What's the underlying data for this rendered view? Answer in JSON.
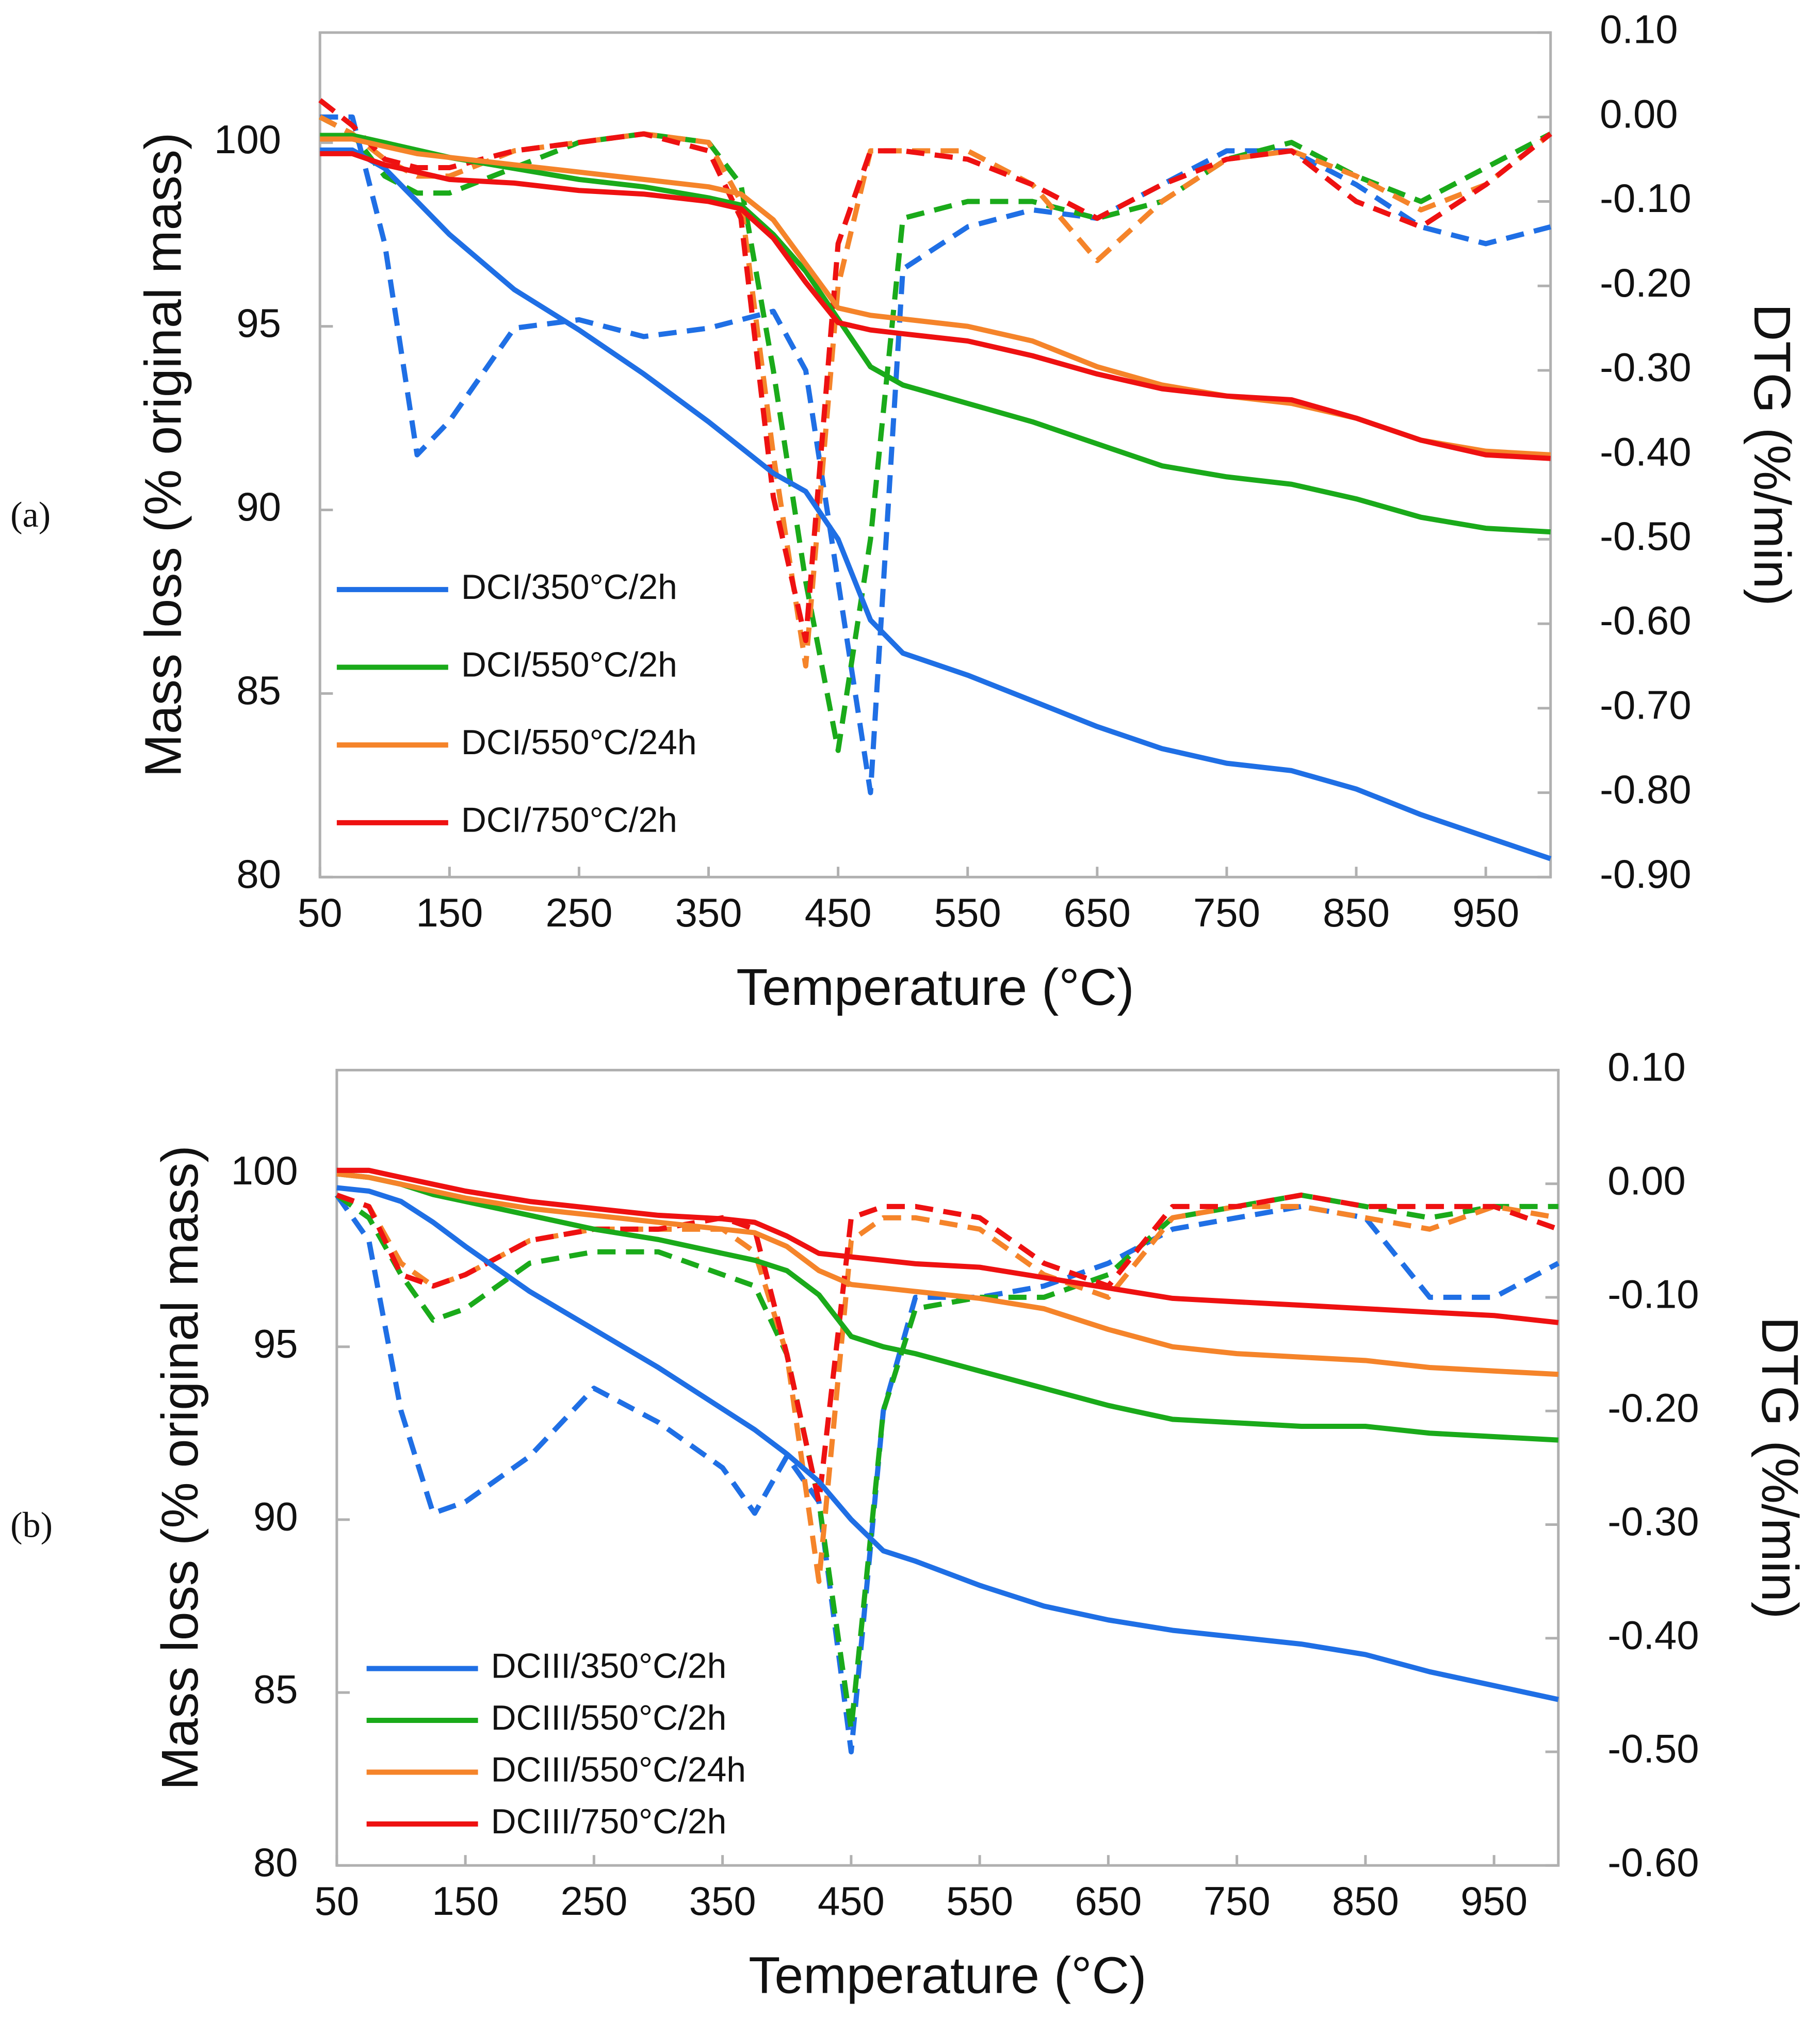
{
  "chart_data": [
    {
      "type": "line",
      "panel_label": "(a)",
      "xlabel": "Temperature (°C)",
      "ylabel": "Mass loss (% original mass)",
      "y2label": "DTG (%/min)",
      "x": [
        50,
        75,
        100,
        125,
        150,
        200,
        250,
        300,
        350,
        375,
        400,
        425,
        450,
        475,
        500,
        550,
        600,
        650,
        700,
        750,
        800,
        850,
        900,
        950,
        1000
      ],
      "xlim": [
        50,
        1000
      ],
      "xticks": [
        50,
        150,
        250,
        350,
        450,
        550,
        650,
        750,
        850,
        950
      ],
      "ylim": [
        80,
        103
      ],
      "yticks": [
        80,
        85,
        90,
        95,
        100
      ],
      "y2lim": [
        -0.9,
        0.1
      ],
      "y2ticks": [
        {
          "value": -0.9,
          "label": "-0.90"
        },
        {
          "value": -0.8,
          "label": "-0.80"
        },
        {
          "value": -0.7,
          "label": "-0.70"
        },
        {
          "value": -0.6,
          "label": "-0.60"
        },
        {
          "value": -0.5,
          "label": "-0.50"
        },
        {
          "value": -0.4,
          "label": "-0.40"
        },
        {
          "value": -0.3,
          "label": "-0.30"
        },
        {
          "value": -0.2,
          "label": "-0.20"
        },
        {
          "value": -0.1,
          "label": "-0.10"
        },
        {
          "value": 0,
          "label": "0.00"
        },
        {
          "value": 0.1,
          "label": "0.10"
        }
      ],
      "series": [
        {
          "name": "DCI/350°C/2h",
          "color": "#1f6fe5",
          "values": [
            99.8,
            99.8,
            99.3,
            98.4,
            97.5,
            96.0,
            94.9,
            93.7,
            92.4,
            91.7,
            91.0,
            90.5,
            89.2,
            87.0,
            86.1,
            85.5,
            84.8,
            84.1,
            83.5,
            83.1,
            82.9,
            82.4,
            81.7,
            81.1,
            80.5
          ]
        },
        {
          "name": "DCI/550°C/2h",
          "color": "#1aaa1a",
          "values": [
            100.2,
            100.2,
            100.0,
            99.8,
            99.6,
            99.3,
            99.0,
            98.8,
            98.5,
            98.3,
            97.5,
            96.5,
            95.2,
            93.9,
            93.4,
            92.9,
            92.4,
            91.8,
            91.2,
            90.9,
            90.7,
            90.3,
            89.8,
            89.5,
            89.4
          ]
        },
        {
          "name": "DCI/550°C/24h",
          "color": "#f5842a",
          "values": [
            100.1,
            100.1,
            99.9,
            99.7,
            99.6,
            99.4,
            99.2,
            99.0,
            98.8,
            98.6,
            97.9,
            96.7,
            95.5,
            95.3,
            95.2,
            95.0,
            94.6,
            93.9,
            93.4,
            93.1,
            92.9,
            92.5,
            91.9,
            91.6,
            91.5
          ]
        },
        {
          "name": "DCI/750°C/2h",
          "color": "#ee1111",
          "values": [
            99.7,
            99.7,
            99.4,
            99.2,
            99.0,
            98.9,
            98.7,
            98.6,
            98.4,
            98.2,
            97.4,
            96.2,
            95.1,
            94.9,
            94.8,
            94.6,
            94.2,
            93.7,
            93.3,
            93.1,
            93.0,
            92.5,
            91.9,
            91.5,
            91.4
          ]
        },
        {
          "color": "#1f6fe5",
          "axis": "y2",
          "line_style": "dashed",
          "values": [
            0.0,
            0.0,
            -0.15,
            -0.4,
            -0.36,
            -0.25,
            -0.24,
            -0.26,
            -0.25,
            -0.24,
            -0.23,
            -0.3,
            -0.55,
            -0.8,
            -0.18,
            -0.13,
            -0.11,
            -0.12,
            -0.08,
            -0.04,
            -0.04,
            -0.08,
            -0.13,
            -0.15,
            -0.13
          ]
        },
        {
          "color": "#1aaa1a",
          "axis": "y2",
          "line_style": "dashed",
          "values": [
            0.0,
            -0.02,
            -0.07,
            -0.09,
            -0.09,
            -0.06,
            -0.03,
            -0.02,
            -0.03,
            -0.08,
            -0.3,
            -0.55,
            -0.75,
            -0.5,
            -0.12,
            -0.1,
            -0.1,
            -0.12,
            -0.1,
            -0.05,
            -0.03,
            -0.07,
            -0.1,
            -0.06,
            -0.02
          ]
        },
        {
          "color": "#f5842a",
          "axis": "y2",
          "line_style": "dashed",
          "values": [
            0.0,
            -0.02,
            -0.05,
            -0.07,
            -0.07,
            -0.04,
            -0.03,
            -0.02,
            -0.03,
            -0.1,
            -0.4,
            -0.65,
            -0.2,
            -0.04,
            -0.04,
            -0.04,
            -0.08,
            -0.17,
            -0.1,
            -0.05,
            -0.04,
            -0.07,
            -0.11,
            -0.08,
            -0.02
          ]
        },
        {
          "color": "#ee1111",
          "axis": "y2",
          "line_style": "dashed",
          "values": [
            0.02,
            -0.01,
            -0.05,
            -0.06,
            -0.06,
            -0.04,
            -0.03,
            -0.02,
            -0.04,
            -0.12,
            -0.45,
            -0.62,
            -0.15,
            -0.04,
            -0.04,
            -0.05,
            -0.08,
            -0.12,
            -0.08,
            -0.05,
            -0.04,
            -0.1,
            -0.13,
            -0.08,
            -0.02
          ]
        }
      ]
    },
    {
      "type": "line",
      "panel_label": "(b)",
      "xlabel": "Temperature (°C)",
      "ylabel": "Mass loss (% original mass)",
      "y2label": "DTG (%/min)",
      "x": [
        50,
        75,
        100,
        125,
        150,
        200,
        250,
        300,
        350,
        375,
        400,
        425,
        450,
        475,
        500,
        550,
        600,
        650,
        700,
        750,
        800,
        850,
        900,
        950,
        1000
      ],
      "xlim": [
        50,
        1000
      ],
      "xticks": [
        50,
        150,
        250,
        350,
        450,
        550,
        650,
        750,
        850,
        950
      ],
      "ylim": [
        80,
        103
      ],
      "yticks": [
        80,
        85,
        90,
        95,
        100
      ],
      "y2lim": [
        -0.6,
        0.1
      ],
      "y2ticks": [
        {
          "value": -0.6,
          "label": "-0.60"
        },
        {
          "value": -0.5,
          "label": "-0.50"
        },
        {
          "value": -0.4,
          "label": "-0.40"
        },
        {
          "value": -0.3,
          "label": "-0.30"
        },
        {
          "value": -0.2,
          "label": "-0.20"
        },
        {
          "value": -0.1,
          "label": "-0.10"
        },
        {
          "value": 0,
          "label": "0.00"
        },
        {
          "value": 0.1,
          "label": "0.10"
        }
      ],
      "series": [
        {
          "name": "DCIII/350°C/2h",
          "color": "#1f6fe5",
          "values": [
            99.6,
            99.5,
            99.2,
            98.6,
            97.9,
            96.6,
            95.5,
            94.4,
            93.2,
            92.6,
            91.9,
            91.1,
            90.0,
            89.1,
            88.8,
            88.1,
            87.5,
            87.1,
            86.8,
            86.6,
            86.4,
            86.1,
            85.6,
            85.2,
            84.8
          ]
        },
        {
          "name": "DCIII/550°C/2h",
          "color": "#1aaa1a",
          "values": [
            100.0,
            99.9,
            99.7,
            99.4,
            99.2,
            98.8,
            98.4,
            98.1,
            97.7,
            97.5,
            97.2,
            96.5,
            95.3,
            95.0,
            94.8,
            94.3,
            93.8,
            93.3,
            92.9,
            92.8,
            92.7,
            92.7,
            92.5,
            92.4,
            92.3
          ]
        },
        {
          "name": "DCIII/550°C/24h",
          "color": "#f5842a",
          "values": [
            100.0,
            99.9,
            99.7,
            99.5,
            99.3,
            99.0,
            98.8,
            98.6,
            98.4,
            98.3,
            97.9,
            97.2,
            96.8,
            96.7,
            96.6,
            96.4,
            96.1,
            95.5,
            95.0,
            94.8,
            94.7,
            94.6,
            94.4,
            94.3,
            94.2
          ]
        },
        {
          "name": "DCIII/750°C/2h",
          "color": "#ee1111",
          "values": [
            100.1,
            100.1,
            99.9,
            99.7,
            99.5,
            99.2,
            99.0,
            98.8,
            98.7,
            98.6,
            98.2,
            97.7,
            97.6,
            97.5,
            97.4,
            97.3,
            97.0,
            96.7,
            96.4,
            96.3,
            96.2,
            96.1,
            96.0,
            95.9,
            95.7
          ]
        },
        {
          "color": "#1f6fe5",
          "axis": "y2",
          "line_style": "dashed",
          "values": [
            -0.01,
            -0.05,
            -0.2,
            -0.29,
            -0.28,
            -0.24,
            -0.18,
            -0.21,
            -0.25,
            -0.29,
            -0.24,
            -0.28,
            -0.5,
            -0.2,
            -0.1,
            -0.1,
            -0.09,
            -0.07,
            -0.04,
            -0.03,
            -0.02,
            -0.03,
            -0.1,
            -0.1,
            -0.07
          ]
        },
        {
          "color": "#1aaa1a",
          "axis": "y2",
          "line_style": "dashed",
          "values": [
            -0.01,
            -0.03,
            -0.08,
            -0.12,
            -0.11,
            -0.07,
            -0.06,
            -0.06,
            -0.08,
            -0.09,
            -0.15,
            -0.28,
            -0.48,
            -0.2,
            -0.11,
            -0.1,
            -0.1,
            -0.08,
            -0.03,
            -0.02,
            -0.01,
            -0.02,
            -0.03,
            -0.02,
            -0.02
          ]
        },
        {
          "color": "#f5842a",
          "axis": "y2",
          "line_style": "dashed",
          "values": [
            -0.01,
            -0.02,
            -0.07,
            -0.09,
            -0.08,
            -0.05,
            -0.04,
            -0.04,
            -0.04,
            -0.06,
            -0.15,
            -0.35,
            -0.05,
            -0.03,
            -0.03,
            -0.04,
            -0.08,
            -0.1,
            -0.03,
            -0.02,
            -0.02,
            -0.03,
            -0.04,
            -0.02,
            -0.03
          ]
        },
        {
          "color": "#ee1111",
          "axis": "y2",
          "line_style": "dashed",
          "values": [
            -0.01,
            -0.02,
            -0.08,
            -0.09,
            -0.08,
            -0.05,
            -0.04,
            -0.04,
            -0.03,
            -0.04,
            -0.15,
            -0.28,
            -0.03,
            -0.02,
            -0.02,
            -0.03,
            -0.07,
            -0.09,
            -0.02,
            -0.02,
            -0.01,
            -0.02,
            -0.02,
            -0.02,
            -0.04
          ]
        }
      ]
    }
  ]
}
